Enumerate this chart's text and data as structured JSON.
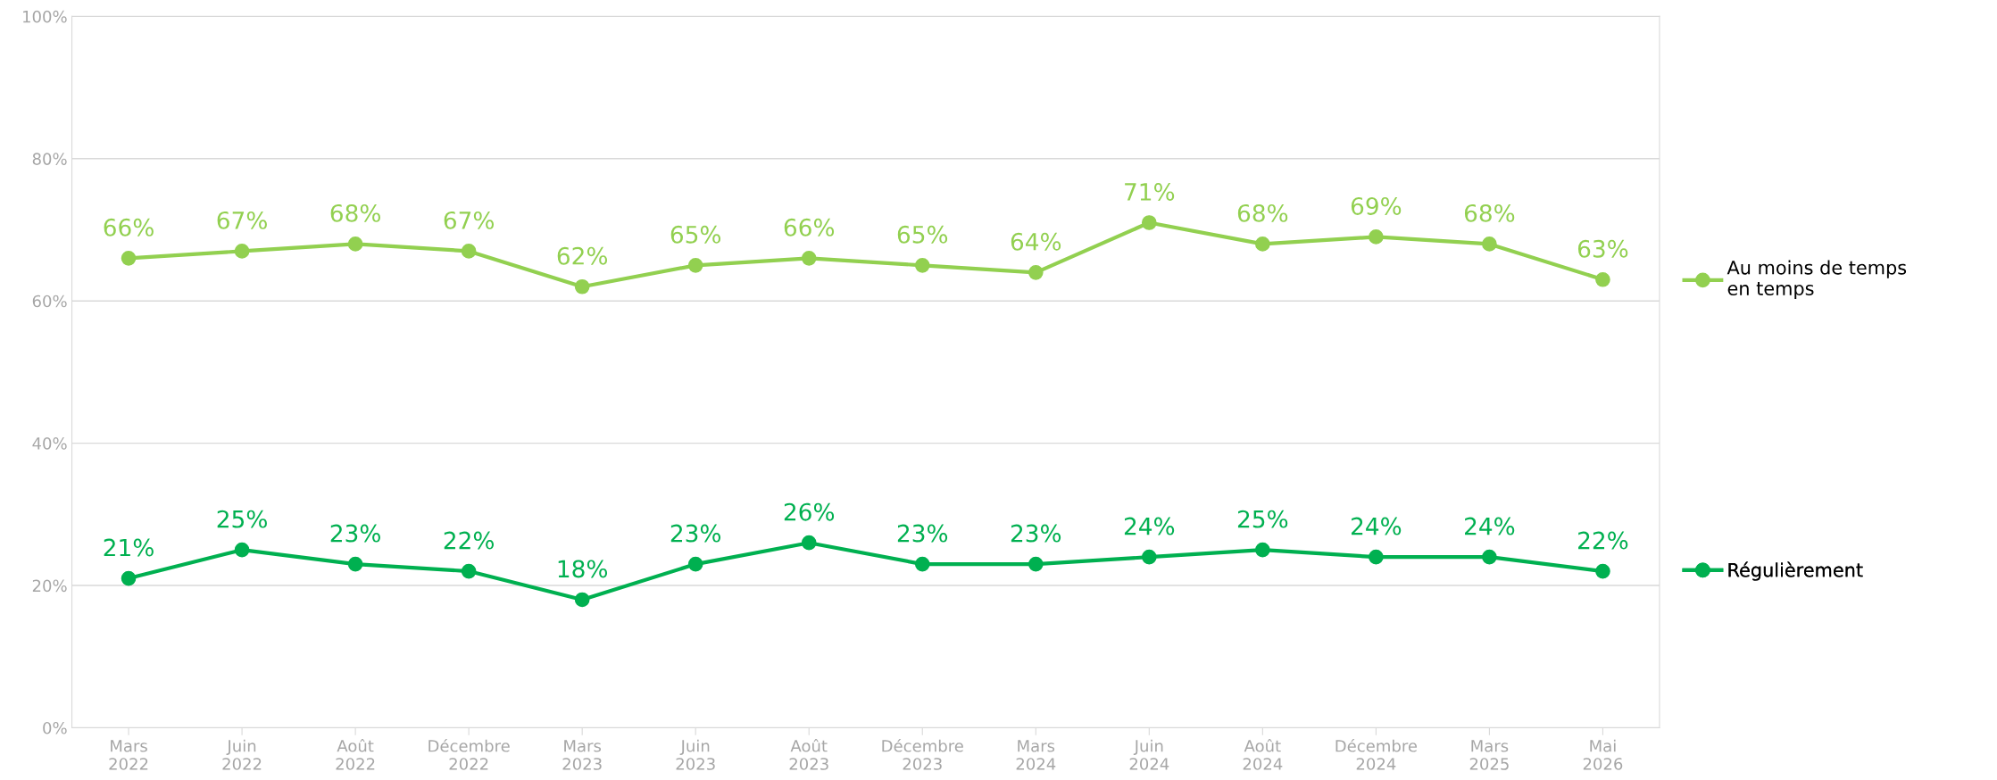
{
  "chart_data": {
    "type": "line",
    "categories": [
      "Mars\n2022",
      "Juin\n2022",
      "Août\n2022",
      "Décembre\n2022",
      "Mars\n2023",
      "Juin\n2023",
      "Août\n2023",
      "Décembre\n2023",
      "Mars\n2024",
      "Juin\n2024",
      "Août\n2024",
      "Décembre\n2024",
      "Mars\n2025",
      "Mai\n2026"
    ],
    "series": [
      {
        "name": "Au moins de temps\nen temps",
        "color": "#92d050",
        "values": [
          66,
          67,
          68,
          67,
          62,
          65,
          66,
          65,
          64,
          71,
          68,
          69,
          68,
          63
        ],
        "value_labels": [
          "66%",
          "67%",
          "68%",
          "67%",
          "62%",
          "65%",
          "66%",
          "65%",
          "64%",
          "71%",
          "68%",
          "69%",
          "68%",
          "63%"
        ]
      },
      {
        "name": "Régulièrement",
        "color": "#00b050",
        "values": [
          21,
          25,
          23,
          22,
          18,
          23,
          26,
          23,
          23,
          24,
          25,
          24,
          24,
          22
        ],
        "value_labels": [
          "21%",
          "25%",
          "23%",
          "22%",
          "18%",
          "23%",
          "26%",
          "23%",
          "23%",
          "24%",
          "25%",
          "24%",
          "24%",
          "22%"
        ]
      }
    ],
    "ylim": [
      0,
      100
    ],
    "yticks": [
      {
        "value": 0,
        "label": "0%"
      },
      {
        "value": 20,
        "label": "20%"
      },
      {
        "value": 40,
        "label": "40%"
      },
      {
        "value": 60,
        "label": "60%"
      },
      {
        "value": 80,
        "label": "80%"
      },
      {
        "value": 100,
        "label": "100%"
      }
    ],
    "grid": "y",
    "legend": "right",
    "marker": "circle",
    "line_style": "solid"
  }
}
